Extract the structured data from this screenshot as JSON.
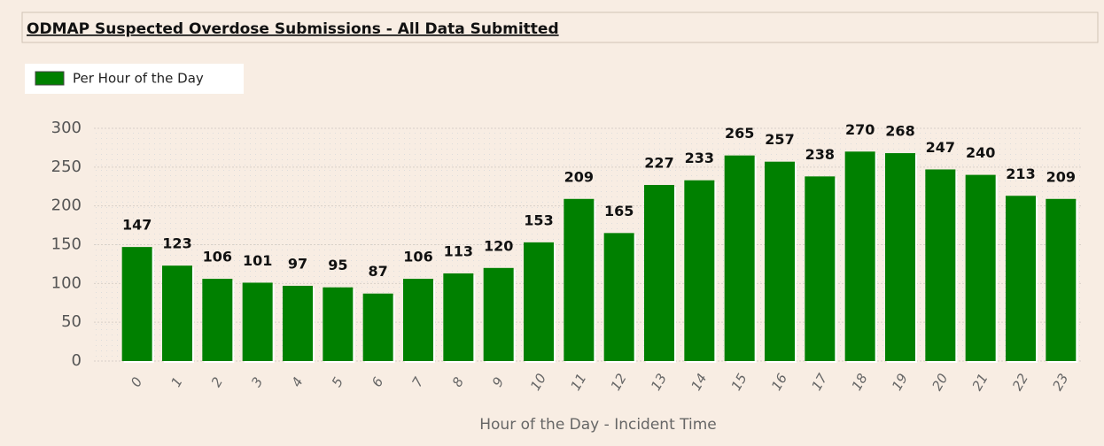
{
  "chart_data": {
    "type": "bar",
    "title": "ODMAP Suspected Overdose Submissions - All Data Submitted",
    "series": [
      {
        "name": "Per Hour of the Day",
        "color": "#008000",
        "values": [
          147,
          123,
          106,
          101,
          97,
          95,
          87,
          106,
          113,
          120,
          153,
          209,
          165,
          227,
          233,
          265,
          257,
          238,
          270,
          268,
          247,
          240,
          213,
          209
        ]
      }
    ],
    "categories": [
      "0",
      "1",
      "2",
      "3",
      "4",
      "5",
      "6",
      "7",
      "8",
      "9",
      "10",
      "11",
      "12",
      "13",
      "14",
      "15",
      "16",
      "17",
      "18",
      "19",
      "20",
      "21",
      "22",
      "23"
    ],
    "x_label": "Hour of the Day - Incident Time",
    "ylim": [
      0,
      300
    ],
    "yticks": [
      0,
      50,
      100,
      150,
      200,
      250,
      300
    ],
    "grid": true
  }
}
